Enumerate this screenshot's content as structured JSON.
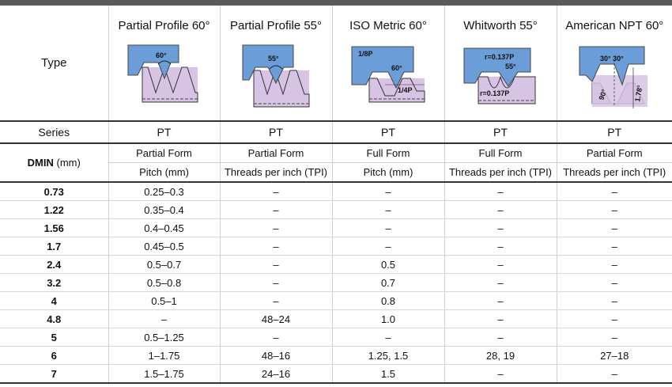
{
  "header": {
    "type_label": "Type",
    "profiles": [
      {
        "name": "Partial Profile 60°",
        "icon": "partial-60-profile-icon",
        "angle": "60°"
      },
      {
        "name": "Partial Profile 55°",
        "icon": "partial-55-profile-icon",
        "angle": "55°"
      },
      {
        "name": "ISO Metric 60°",
        "icon": "iso-metric-profile-icon",
        "angle": "60°",
        "top_label": "1/8P",
        "bottom_label": "1/4P"
      },
      {
        "name": "Whitworth 55°",
        "icon": "whitworth-profile-icon",
        "angle": "55°",
        "top_label": "r=0.137P",
        "bottom_label": "r=0.137P"
      },
      {
        "name": "American NPT 60°",
        "icon": "npt-profile-icon",
        "angle": "30° 30°",
        "left_label": "90°",
        "right_label": "1.78°"
      }
    ]
  },
  "series_row": {
    "label": "Series",
    "values": [
      "PT",
      "PT",
      "PT",
      "PT",
      "PT"
    ]
  },
  "dmin": {
    "label_bold": "DMIN",
    "label_unit": " (mm)"
  },
  "form_row": [
    "Partial Form",
    "Partial Form",
    "Full Form",
    "Full Form",
    "Partial Form"
  ],
  "unit_row": [
    "Pitch (mm)",
    "Threads per inch (TPI)",
    "Pitch (mm)",
    "Threads per inch (TPI)",
    "Threads per inch (TPI)"
  ],
  "rows": [
    {
      "dmin": "0.73",
      "values": [
        "0.25–0.3",
        "–",
        "–",
        "–",
        "–"
      ]
    },
    {
      "dmin": "1.22",
      "values": [
        "0.35–0.4",
        "–",
        "–",
        "–",
        "–"
      ]
    },
    {
      "dmin": "1.56",
      "values": [
        "0.4–0.45",
        "–",
        "–",
        "–",
        "–"
      ]
    },
    {
      "dmin": "1.7",
      "values": [
        "0.45–0.5",
        "–",
        "–",
        "–",
        "–"
      ]
    },
    {
      "dmin": "2.4",
      "values": [
        "0.5–0.7",
        "–",
        "0.5",
        "–",
        "–"
      ]
    },
    {
      "dmin": "3.2",
      "values": [
        "0.5–0.8",
        "–",
        "0.7",
        "–",
        "–"
      ]
    },
    {
      "dmin": "4",
      "values": [
        "0.5–1",
        "–",
        "0.8",
        "–",
        "–"
      ]
    },
    {
      "dmin": "4.8",
      "values": [
        "–",
        "48–24",
        "1.0",
        "–",
        "–"
      ]
    },
    {
      "dmin": "5",
      "values": [
        "0.5–1.25",
        "–",
        "–",
        "–",
        "–"
      ]
    },
    {
      "dmin": "6",
      "values": [
        "1–1.75",
        "48–16",
        "1.25, 1.5",
        "28, 19",
        "27–18"
      ]
    },
    {
      "dmin": "7",
      "values": [
        "1.5–1.75",
        "24–16",
        "1.5",
        "–",
        "–"
      ]
    }
  ],
  "colors": {
    "tool_blue": "#6b9ed8",
    "thread_purple": "#d7c3e3",
    "rule_dark": "#333333"
  }
}
